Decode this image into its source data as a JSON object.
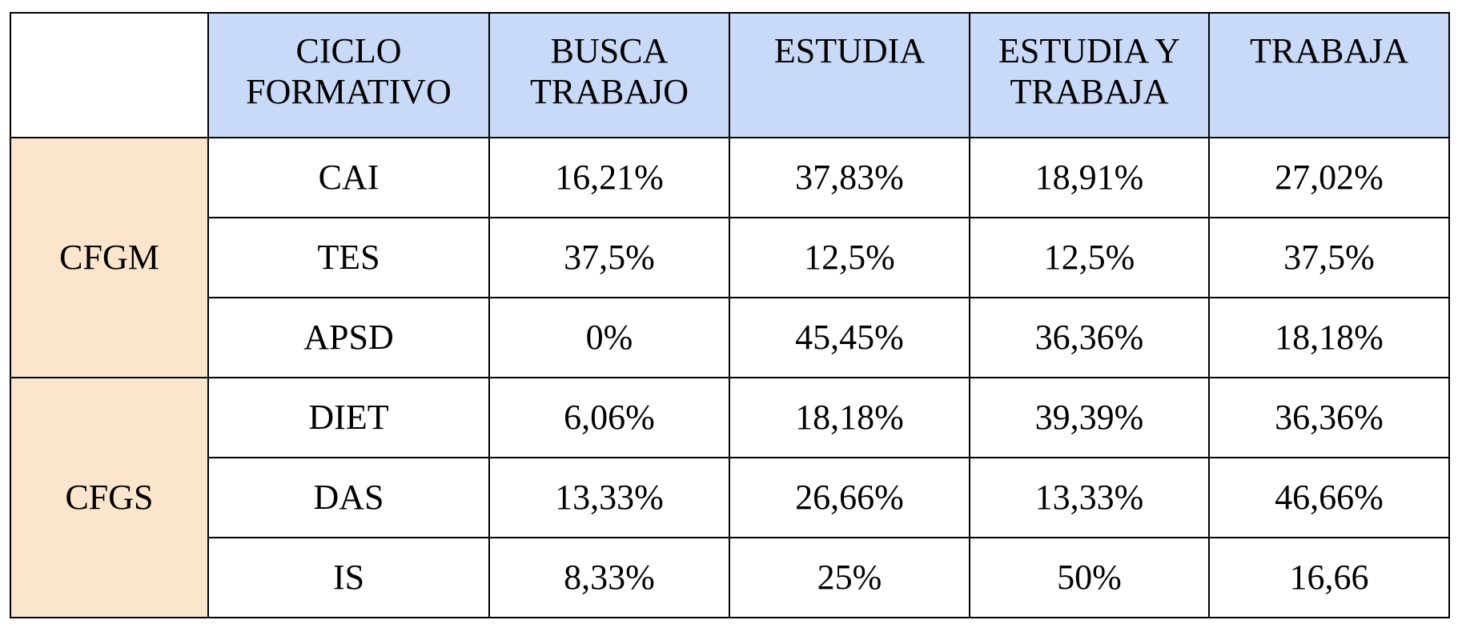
{
  "table": {
    "header": [
      "CICLO FORMATIVO",
      "BUSCA TRABAJO",
      "ESTUDIA",
      "ESTUDIA Y TRABAJA",
      "TRABAJA"
    ],
    "groups": [
      {
        "label": "CFGM",
        "rows": [
          [
            "CAI",
            "16,21%",
            "37,83%",
            "18,91%",
            "27,02%"
          ],
          [
            "TES",
            "37,5%",
            "12,5%",
            "12,5%",
            "37,5%"
          ],
          [
            "APSD",
            "0%",
            "45,45%",
            "36,36%",
            "18,18%"
          ]
        ]
      },
      {
        "label": "CFGS",
        "rows": [
          [
            "DIET",
            "6,06%",
            "18,18%",
            "39,39%",
            "36,36%"
          ],
          [
            "DAS",
            "13,33%",
            "26,66%",
            "13,33%",
            "46,66%"
          ],
          [
            "IS",
            "8,33%",
            "25%",
            "50%",
            "16,66"
          ]
        ]
      }
    ]
  }
}
